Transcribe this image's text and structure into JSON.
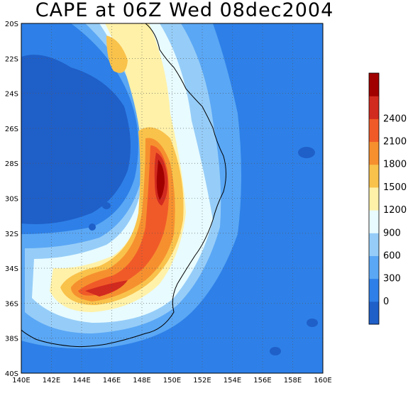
{
  "title": "CAPE at 06Z Wed 08dec2004",
  "map": {
    "variable": "CAPE",
    "lon_range": [
      140,
      160
    ],
    "lat_range": [
      -40,
      -20
    ],
    "x_ticks": [
      "140E",
      "142E",
      "144E",
      "146E",
      "148E",
      "150E",
      "152E",
      "154E",
      "156E",
      "158E",
      "160E"
    ],
    "y_ticks": [
      "20S",
      "22S",
      "24S",
      "26S",
      "28S",
      "30S",
      "32S",
      "34S",
      "36S",
      "38S",
      "40S"
    ]
  },
  "colorbar": {
    "labels": [
      "0",
      "300",
      "600",
      "900",
      "1200",
      "1500",
      "1800",
      "2100",
      "2400"
    ],
    "colors": [
      "#1f5fc8",
      "#2e80e8",
      "#5aa7f5",
      "#96cdf8",
      "#e8fbff",
      "#fff1a8",
      "#f9c24b",
      "#f6902f",
      "#f05a28",
      "#d12a1f",
      "#a00000"
    ]
  }
}
